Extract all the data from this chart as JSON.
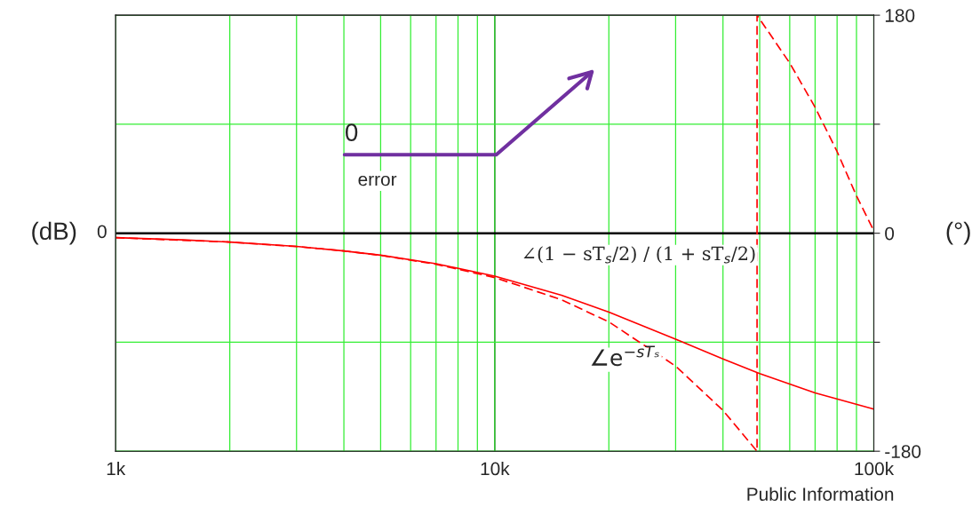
{
  "chart_data": {
    "type": "line",
    "ylabel": "(dB)",
    "y2label": "(°)",
    "y2lim": [
      -180,
      180
    ],
    "y2ticks": [
      -180,
      {
        "value": -90,
        "label": null
      },
      0,
      {
        "value": 90,
        "label": null
      },
      180
    ],
    "xlim": [
      1000,
      100000
    ],
    "xticks": [
      {
        "value": 1000,
        "label": "1k"
      },
      {
        "value": 2000,
        "label": null
      },
      {
        "value": 3000,
        "label": null
      },
      {
        "value": 4000,
        "label": null
      },
      {
        "value": 5000,
        "label": null
      },
      {
        "value": 6000,
        "label": null
      },
      {
        "value": 7000,
        "label": null
      },
      {
        "value": 8000,
        "label": null
      },
      {
        "value": 9000,
        "label": null
      },
      {
        "value": 10000,
        "label": "10k"
      },
      {
        "value": 20000,
        "label": null
      },
      {
        "value": 30000,
        "label": null
      },
      {
        "value": 40000,
        "label": null
      },
      {
        "value": 50000,
        "label": null
      },
      {
        "value": 60000,
        "label": null
      },
      {
        "value": 70000,
        "label": null
      },
      {
        "value": 80000,
        "label": null
      },
      {
        "value": 90000,
        "label": null
      },
      {
        "value": 100000,
        "label": "100k"
      }
    ],
    "log": "x",
    "grid": true,
    "series": [
      {
        "color": "#ff0000",
        "axis": "y2",
        "line_style": "solid",
        "x": [
          1000,
          1500,
          2000,
          3000,
          4000,
          5000,
          7000,
          10000,
          15000,
          20000,
          30000,
          40000,
          50000,
          70000,
          100000
        ],
        "values": [
          -3.7,
          -5.5,
          -7.3,
          -10.9,
          -14.6,
          -18.1,
          -25.2,
          -35.4,
          -51.2,
          -65.1,
          -87.5,
          -103.8,
          -115.9,
          -131.8,
          -145.2
        ]
      },
      {
        "color": "#ff0000",
        "axis": "y2",
        "line_style": "dashed",
        "x": [
          1000,
          2000,
          3000,
          4000,
          5000,
          7000,
          10000,
          15000,
          20000,
          30000,
          40000,
          49200,
          49200,
          60000,
          70000,
          80000,
          90000,
          100000
        ],
        "values": [
          -3.7,
          -7.3,
          -11.0,
          -14.6,
          -18.3,
          -25.6,
          -36.6,
          -54.9,
          -73.2,
          -109.7,
          -146.3,
          -180,
          180,
          140.5,
          104.0,
          67.4,
          30.8,
          2
        ]
      }
    ],
    "ref_lines": [
      {
        "axis": "x",
        "value": 10000,
        "color": "#000000"
      },
      {
        "axis": "y2",
        "value": 0,
        "color": "#000000"
      }
    ],
    "annotations": [
      "0",
      "error",
      "Public Information",
      "0",
      "∠(1 − sT$_{s}$/2) / (1 + sT$_{s}$/2)",
      "∠e$^{−sTₛ}$"
    ]
  }
}
